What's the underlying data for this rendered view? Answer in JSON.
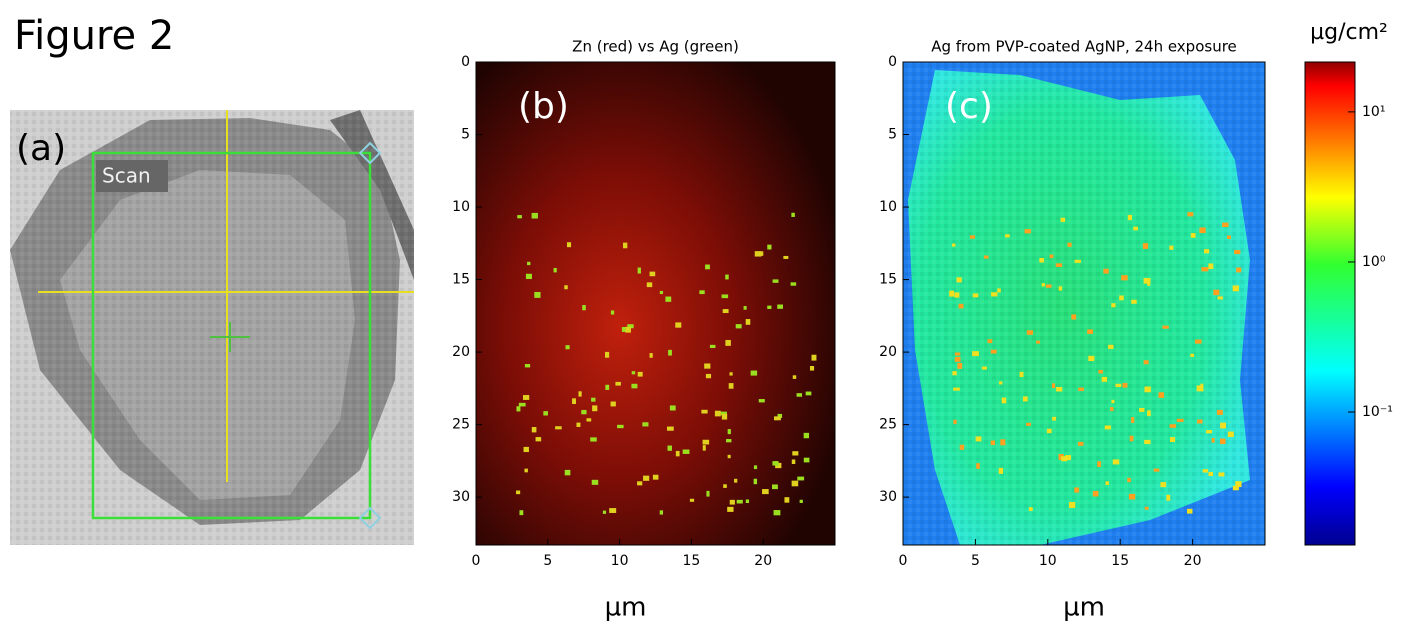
{
  "figure_title": "Figure 2",
  "panel_a": {
    "label": "(a)",
    "scan_label": "Scan"
  },
  "chart_data": [
    {
      "type": "heatmap",
      "title": "Zn (red) vs Ag (green)",
      "panel_label": "(b)",
      "xlabel": "µm",
      "colormap": "red-green composite",
      "xlim": [
        0,
        25
      ],
      "xticks": [
        0,
        5,
        10,
        15,
        20
      ],
      "ylim": [
        0,
        33.3
      ],
      "y_inverted": true,
      "yticks": [
        0,
        5,
        10,
        15,
        20,
        25,
        30
      ]
    },
    {
      "type": "heatmap",
      "title": "Ag from PVP-coated AgNP, 24h exposure",
      "panel_label": "(c)",
      "xlabel": "µm",
      "colormap": "jet",
      "xlim": [
        0,
        25
      ],
      "xticks": [
        0,
        5,
        10,
        15,
        20
      ],
      "ylim": [
        0,
        33.3
      ],
      "y_inverted": true,
      "yticks": [
        0,
        5,
        10,
        15,
        20,
        25,
        30
      ],
      "colorbar": {
        "label": "µg/cm²",
        "log_scale": true,
        "lim": [
          0.013,
          21.5
        ],
        "ticks": [
          {
            "value": 10,
            "label": "10¹"
          },
          {
            "value": 1,
            "label": "10⁰"
          },
          {
            "value": 0.1,
            "label": "10⁻¹"
          }
        ]
      }
    }
  ]
}
